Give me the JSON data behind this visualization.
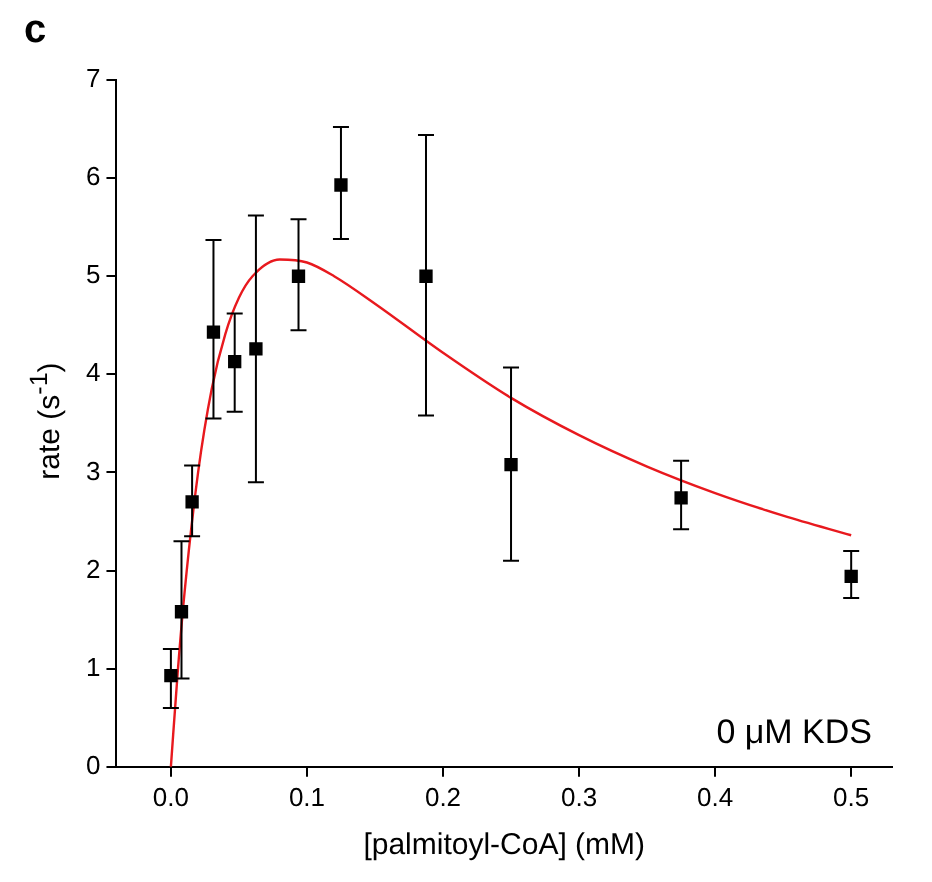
{
  "chart_data": {
    "type": "scatter",
    "title": "c",
    "xlabel": "[palmitoyl-CoA] (mM)",
    "ylabel": "rate (s$^{-1}$)",
    "xlim": [
      -0.04,
      0.53
    ],
    "xticks": [
      {
        "value": 0,
        "label": "0.0"
      },
      {
        "value": 0.1,
        "label": "0.1"
      },
      {
        "value": 0.2,
        "label": "0.2"
      },
      {
        "value": 0.3,
        "label": "0.3"
      },
      {
        "value": 0.4,
        "label": "0.4"
      },
      {
        "value": 0.5,
        "label": "0.5"
      }
    ],
    "ylim": [
      0,
      7
    ],
    "yticks": [
      0,
      1,
      2,
      3,
      4,
      5,
      6,
      7
    ],
    "grid": false,
    "legend": false,
    "marker": "square",
    "series": [
      {
        "color": "#000000",
        "x": [
          0,
          0.0078,
          0.0156,
          0.0313,
          0.0469,
          0.0625,
          0.0938,
          0.125,
          0.1875,
          0.25,
          0.375,
          0.5
        ],
        "values": [
          0.93,
          1.58,
          2.7,
          4.43,
          4.13,
          4.26,
          5.0,
          5.93,
          5.0,
          3.08,
          2.74,
          1.94
        ],
        "errors": [
          [
            0.6,
            1.2
          ],
          [
            0.9,
            2.3
          ],
          [
            2.35,
            3.07
          ],
          [
            3.55,
            5.37
          ],
          [
            3.62,
            4.62
          ],
          [
            2.9,
            5.62
          ],
          [
            4.45,
            5.58
          ],
          [
            5.38,
            6.52
          ],
          [
            3.58,
            6.44
          ],
          [
            2.1,
            4.07
          ],
          [
            2.42,
            3.12
          ],
          [
            1.72,
            2.2
          ]
        ]
      },
      {
        "type": "line",
        "color": "#e8191e",
        "marker": "none",
        "x": [
          0,
          0.005,
          0.01,
          0.02,
          0.03,
          0.04,
          0.05,
          0.06,
          0.08,
          0.1,
          0.12,
          0.15,
          0.2,
          0.25,
          0.3,
          0.35,
          0.4,
          0.45,
          0.5
        ],
        "values": [
          0,
          0.96,
          1.77,
          3.0,
          3.85,
          4.41,
          4.78,
          5.0,
          5.17,
          5.14,
          5.0,
          4.72,
          4.22,
          3.76,
          3.38,
          3.06,
          2.79,
          2.56,
          2.36
        ]
      }
    ],
    "annotations": [
      "0 μM KDS"
    ]
  }
}
